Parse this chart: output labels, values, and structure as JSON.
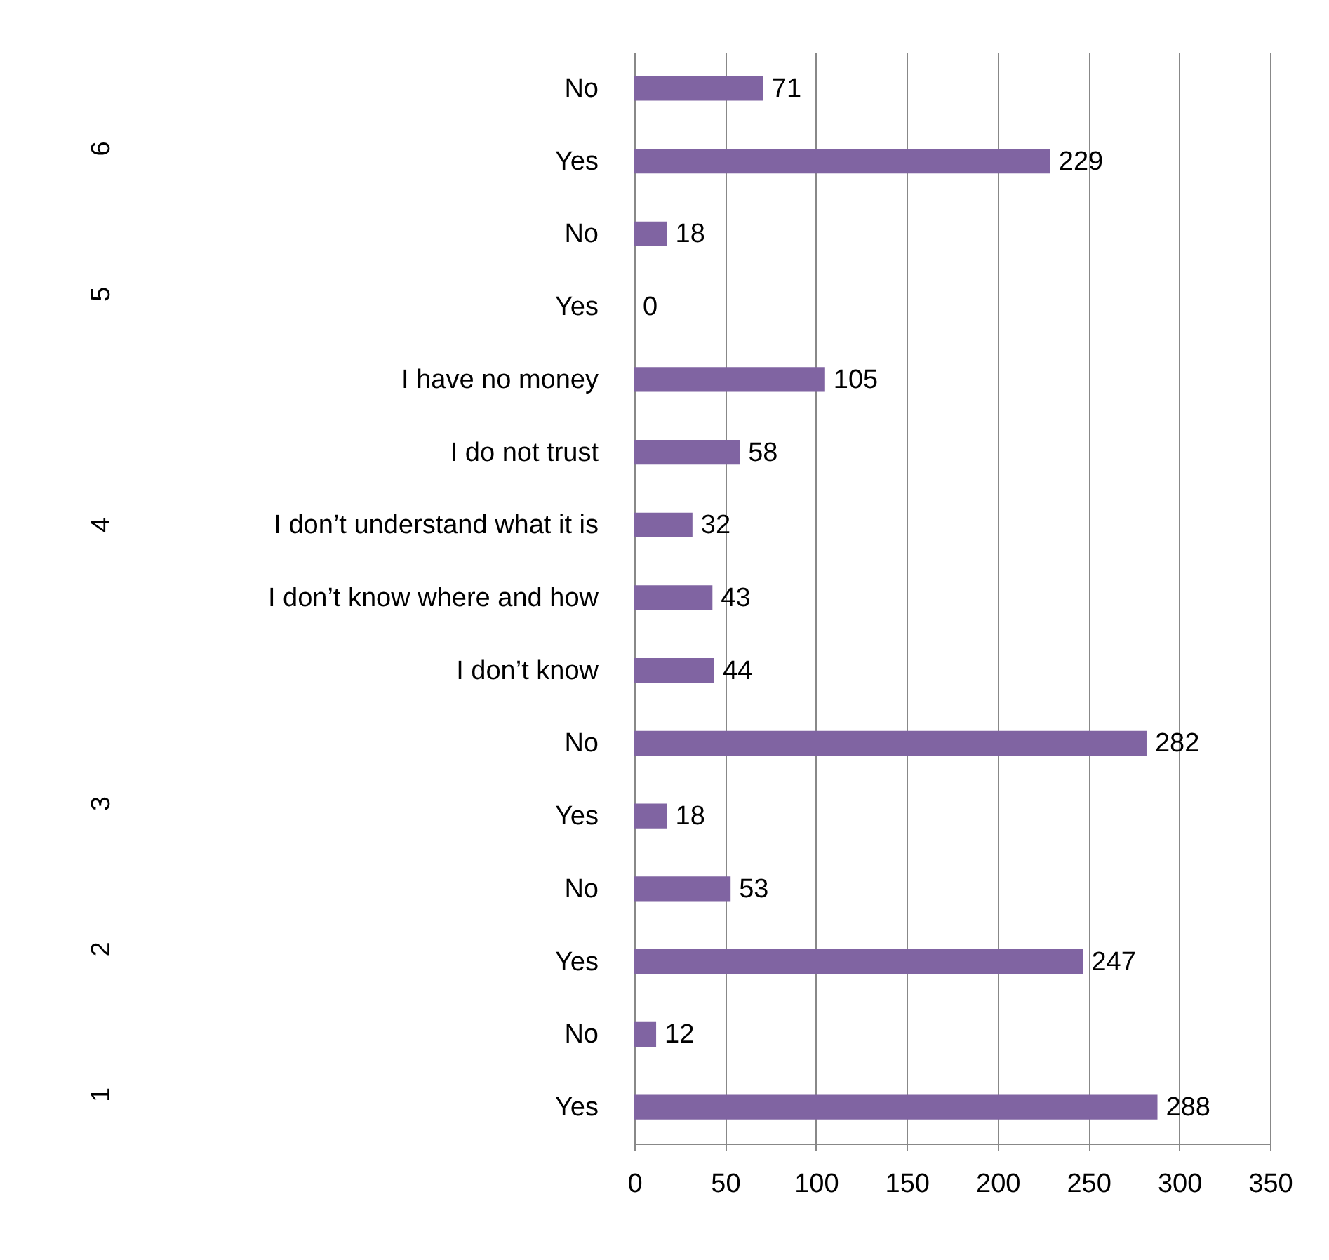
{
  "chart_data": {
    "type": "bar",
    "orientation": "horizontal",
    "categories": [
      "No",
      "Yes",
      "No",
      "Yes",
      "I have no money",
      "I do not trust",
      "I don’t understand what it is",
      "I don’t know where and how",
      "I don’t know",
      "No",
      "Yes",
      "No",
      "Yes",
      "No",
      "Yes"
    ],
    "values": [
      71,
      229,
      18,
      0,
      105,
      58,
      32,
      43,
      44,
      282,
      18,
      53,
      247,
      12,
      288
    ],
    "color": "#8064a2",
    "data_labels": true,
    "xlim": [
      0,
      350
    ],
    "xticks": [
      0,
      50,
      100,
      150,
      200,
      250,
      300,
      350
    ],
    "grid": "x",
    "annotations": [
      "6",
      "5",
      "4",
      "3",
      "2",
      "1"
    ]
  }
}
